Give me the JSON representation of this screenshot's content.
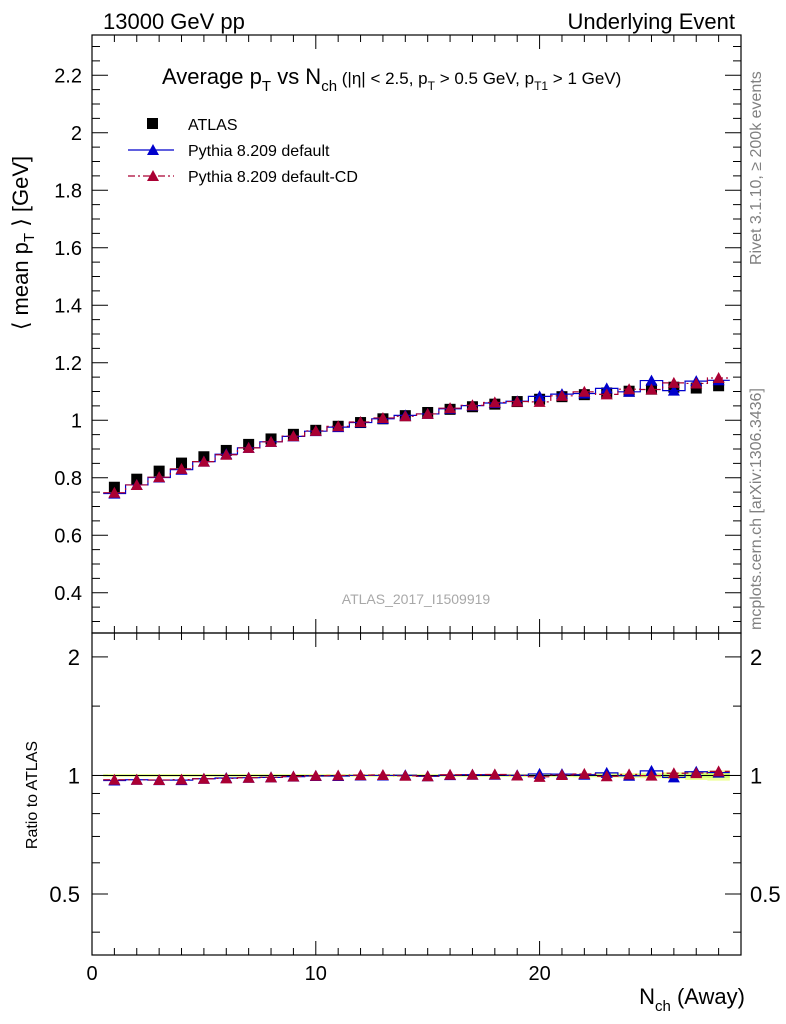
{
  "header": {
    "left": "13000 GeV pp",
    "right": "Underlying Event"
  },
  "side_labels": {
    "rivet": "Rivet 3.1.10, ≥ 200k events",
    "mcplots": "mcplots.cern.ch [arXiv:1306.3436]"
  },
  "watermark": "ATLAS_2017_I1509919",
  "colors": {
    "atlas": "#000000",
    "pythia_default": "#0000cc",
    "pythia_cd": "#aa0033",
    "band_inner": "#ccff66",
    "band_outer": "#eeff99"
  },
  "chart_data": [
    {
      "type": "scatter",
      "title": "Average p_T vs N_ch (|η| < 2.5, p_T > 0.5 GeV, p_T1 > 1 GeV)",
      "ylabel": "⟨ mean p_T ⟩ [GeV]",
      "xlabel": "N_ch (Away)",
      "xlim": [
        0,
        29
      ],
      "ylim": [
        0.26,
        2.34
      ],
      "yticks": [
        0.4,
        0.6,
        0.8,
        1,
        1.2,
        1.4,
        1.6,
        1.8,
        2,
        2.2
      ],
      "xticks": [
        0,
        10,
        20
      ],
      "legend_position": "top-left",
      "x": [
        1,
        2,
        3,
        4,
        5,
        6,
        7,
        8,
        9,
        10,
        11,
        12,
        13,
        14,
        15,
        16,
        17,
        18,
        19,
        20,
        21,
        22,
        23,
        24,
        25,
        26,
        27,
        28
      ],
      "series": [
        {
          "name": "ATLAS",
          "marker": "square",
          "values": [
            0.767,
            0.795,
            0.823,
            0.851,
            0.873,
            0.895,
            0.916,
            0.935,
            0.951,
            0.965,
            0.979,
            0.992,
            1.005,
            1.016,
            1.027,
            1.038,
            1.047,
            1.056,
            1.065,
            1.073,
            1.082,
            1.089,
            1.095,
            1.101,
            1.108,
            1.115,
            1.112,
            1.12
          ]
        },
        {
          "name": "Pythia 8.209 default",
          "marker": "triangle",
          "line": "solid",
          "values": [
            0.745,
            0.775,
            0.801,
            0.828,
            0.856,
            0.882,
            0.904,
            0.925,
            0.944,
            0.962,
            0.976,
            0.992,
            1.005,
            1.017,
            1.022,
            1.04,
            1.051,
            1.06,
            1.066,
            1.083,
            1.091,
            1.093,
            1.111,
            1.099,
            1.138,
            1.103,
            1.136,
            1.139
          ]
        },
        {
          "name": "Pythia 8.209 default-CD",
          "marker": "triangle",
          "line": "dashdot",
          "values": [
            0.748,
            0.775,
            0.802,
            0.831,
            0.856,
            0.88,
            0.904,
            0.925,
            0.945,
            0.963,
            0.979,
            0.994,
            1.008,
            1.014,
            1.022,
            1.042,
            1.052,
            1.062,
            1.065,
            1.064,
            1.085,
            1.099,
            1.09,
            1.108,
            1.107,
            1.13,
            1.128,
            1.147
          ]
        }
      ]
    },
    {
      "type": "scatter",
      "ylabel": "Ratio to ATLAS",
      "xlabel": "N_ch (Away)",
      "xlim": [
        0,
        29
      ],
      "ylim": [
        0.35,
        2.3
      ],
      "scale": "log",
      "yticks": [
        0.5,
        1,
        2
      ],
      "xticks": [
        0,
        10,
        20
      ],
      "x": [
        1,
        2,
        3,
        4,
        5,
        6,
        7,
        8,
        9,
        10,
        11,
        12,
        13,
        14,
        15,
        16,
        17,
        18,
        19,
        20,
        21,
        22,
        23,
        24,
        25,
        26,
        27,
        28
      ],
      "series": [
        {
          "name": "Pythia 8.209 default",
          "marker": "triangle",
          "line": "solid",
          "values": [
            0.971,
            0.975,
            0.973,
            0.973,
            0.981,
            0.985,
            0.987,
            0.989,
            0.993,
            0.997,
            0.997,
            1.0,
            1.0,
            1.001,
            0.995,
            1.002,
            1.004,
            1.004,
            1.001,
            1.009,
            1.008,
            1.004,
            1.015,
            0.998,
            1.027,
            0.989,
            1.022,
            1.017
          ]
        },
        {
          "name": "Pythia 8.209 default-CD",
          "marker": "triangle",
          "line": "dashdot",
          "values": [
            0.975,
            0.975,
            0.974,
            0.976,
            0.981,
            0.983,
            0.987,
            0.989,
            0.994,
            0.998,
            1.0,
            1.002,
            1.003,
            0.998,
            0.995,
            1.004,
            1.005,
            1.006,
            1.0,
            0.992,
            1.003,
            1.009,
            0.995,
            1.006,
            0.999,
            1.013,
            1.014,
            1.024
          ]
        }
      ],
      "band": {
        "inner_halfwidth": [
          0.004,
          0.004,
          0.004,
          0.004,
          0.004,
          0.004,
          0.004,
          0.004,
          0.004,
          0.004,
          0.004,
          0.004,
          0.004,
          0.004,
          0.004,
          0.004,
          0.004,
          0.004,
          0.005,
          0.005,
          0.005,
          0.006,
          0.006,
          0.007,
          0.008,
          0.01,
          0.012,
          0.014
        ],
        "outer_halfwidth": [
          0.008,
          0.008,
          0.008,
          0.008,
          0.008,
          0.008,
          0.008,
          0.008,
          0.008,
          0.008,
          0.008,
          0.008,
          0.008,
          0.008,
          0.008,
          0.008,
          0.008,
          0.008,
          0.009,
          0.009,
          0.01,
          0.011,
          0.012,
          0.014,
          0.016,
          0.02,
          0.026,
          0.03
        ]
      }
    }
  ]
}
